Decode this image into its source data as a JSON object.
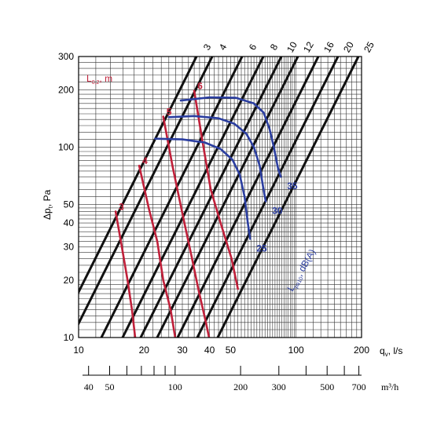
{
  "chart_data": {
    "type": "line",
    "x_axis": {
      "label": "q",
      "label_sub": "v",
      "label_unit": ", l/s",
      "scale": "log",
      "range": [
        10,
        200
      ],
      "ticks": [
        10,
        20,
        30,
        40,
        50,
        100,
        200
      ]
    },
    "x_axis_secondary": {
      "label": "m³/h",
      "scale": "log",
      "ticks": [
        40,
        50,
        100,
        200,
        300,
        500,
        700
      ]
    },
    "y_axis": {
      "label": "Δp",
      "label_sub": "t",
      "label_unit": ", Pa",
      "scale": "log",
      "range": [
        10,
        300
      ],
      "ticks": [
        10,
        20,
        30,
        40,
        50,
        100,
        200,
        300
      ]
    },
    "grid": true,
    "diagonal_lines": {
      "labels": [
        "3",
        "4",
        "6",
        "8",
        "10",
        "12",
        "16",
        "20",
        "25"
      ],
      "color": "#111111"
    },
    "throw_lines": {
      "title": "L",
      "title_sub": "0,2",
      "title_unit": ", m",
      "color": "#c0203a",
      "series": [
        {
          "name": "3",
          "points": [
            [
              14.8,
              46
            ],
            [
              15.8,
              30
            ],
            [
              16.8,
              20
            ],
            [
              17.6,
              14
            ],
            [
              18.2,
              10
            ]
          ]
        },
        {
          "name": "4",
          "points": [
            [
              19.0,
              80
            ],
            [
              21.0,
              48
            ],
            [
              23.0,
              32
            ],
            [
              24.5,
              20
            ],
            [
              26.5,
              14
            ],
            [
              27.8,
              10
            ]
          ]
        },
        {
          "name": "5",
          "points": [
            [
              24.5,
              145
            ],
            [
              27.0,
              80
            ],
            [
              30.0,
              45
            ],
            [
              33.0,
              27
            ],
            [
              35.5,
              18
            ],
            [
              38.5,
              12
            ],
            [
              39.8,
              10
            ]
          ]
        },
        {
          "name": "6",
          "points": [
            [
              34.0,
              198
            ],
            [
              37.0,
              110
            ],
            [
              40.5,
              60
            ],
            [
              45.0,
              40
            ],
            [
              50.5,
              26
            ],
            [
              54.0,
              18
            ]
          ]
        }
      ]
    },
    "sound_lines": {
      "title": "L",
      "title_sub": "pa10",
      "title_unit": ", dB(A)",
      "color": "#2b3ea0",
      "series": [
        {
          "name": "25",
          "points": [
            [
              22.5,
              111
            ],
            [
              30.0,
              110
            ],
            [
              38.0,
              106
            ],
            [
              45.0,
              98
            ],
            [
              51.0,
              86
            ],
            [
              55.0,
              72
            ],
            [
              58.0,
              55
            ],
            [
              60.0,
              40
            ],
            [
              61.5,
              33
            ]
          ]
        },
        {
          "name": "30",
          "points": [
            [
              26.0,
              144
            ],
            [
              34.0,
              146
            ],
            [
              44.0,
              142
            ],
            [
              52.0,
              133
            ],
            [
              59.0,
              118
            ],
            [
              64.0,
              100
            ],
            [
              68.0,
              80
            ],
            [
              70.5,
              62
            ],
            [
              72.5,
              52
            ]
          ]
        },
        {
          "name": "35",
          "points": [
            [
              29.5,
              176
            ],
            [
              40.0,
              183
            ],
            [
              53.0,
              182
            ],
            [
              64.0,
              170
            ],
            [
              71.0,
              152
            ],
            [
              75.5,
              125
            ],
            [
              79.0,
              100
            ],
            [
              82.5,
              78
            ],
            [
              85.0,
              70
            ]
          ]
        }
      ]
    }
  }
}
